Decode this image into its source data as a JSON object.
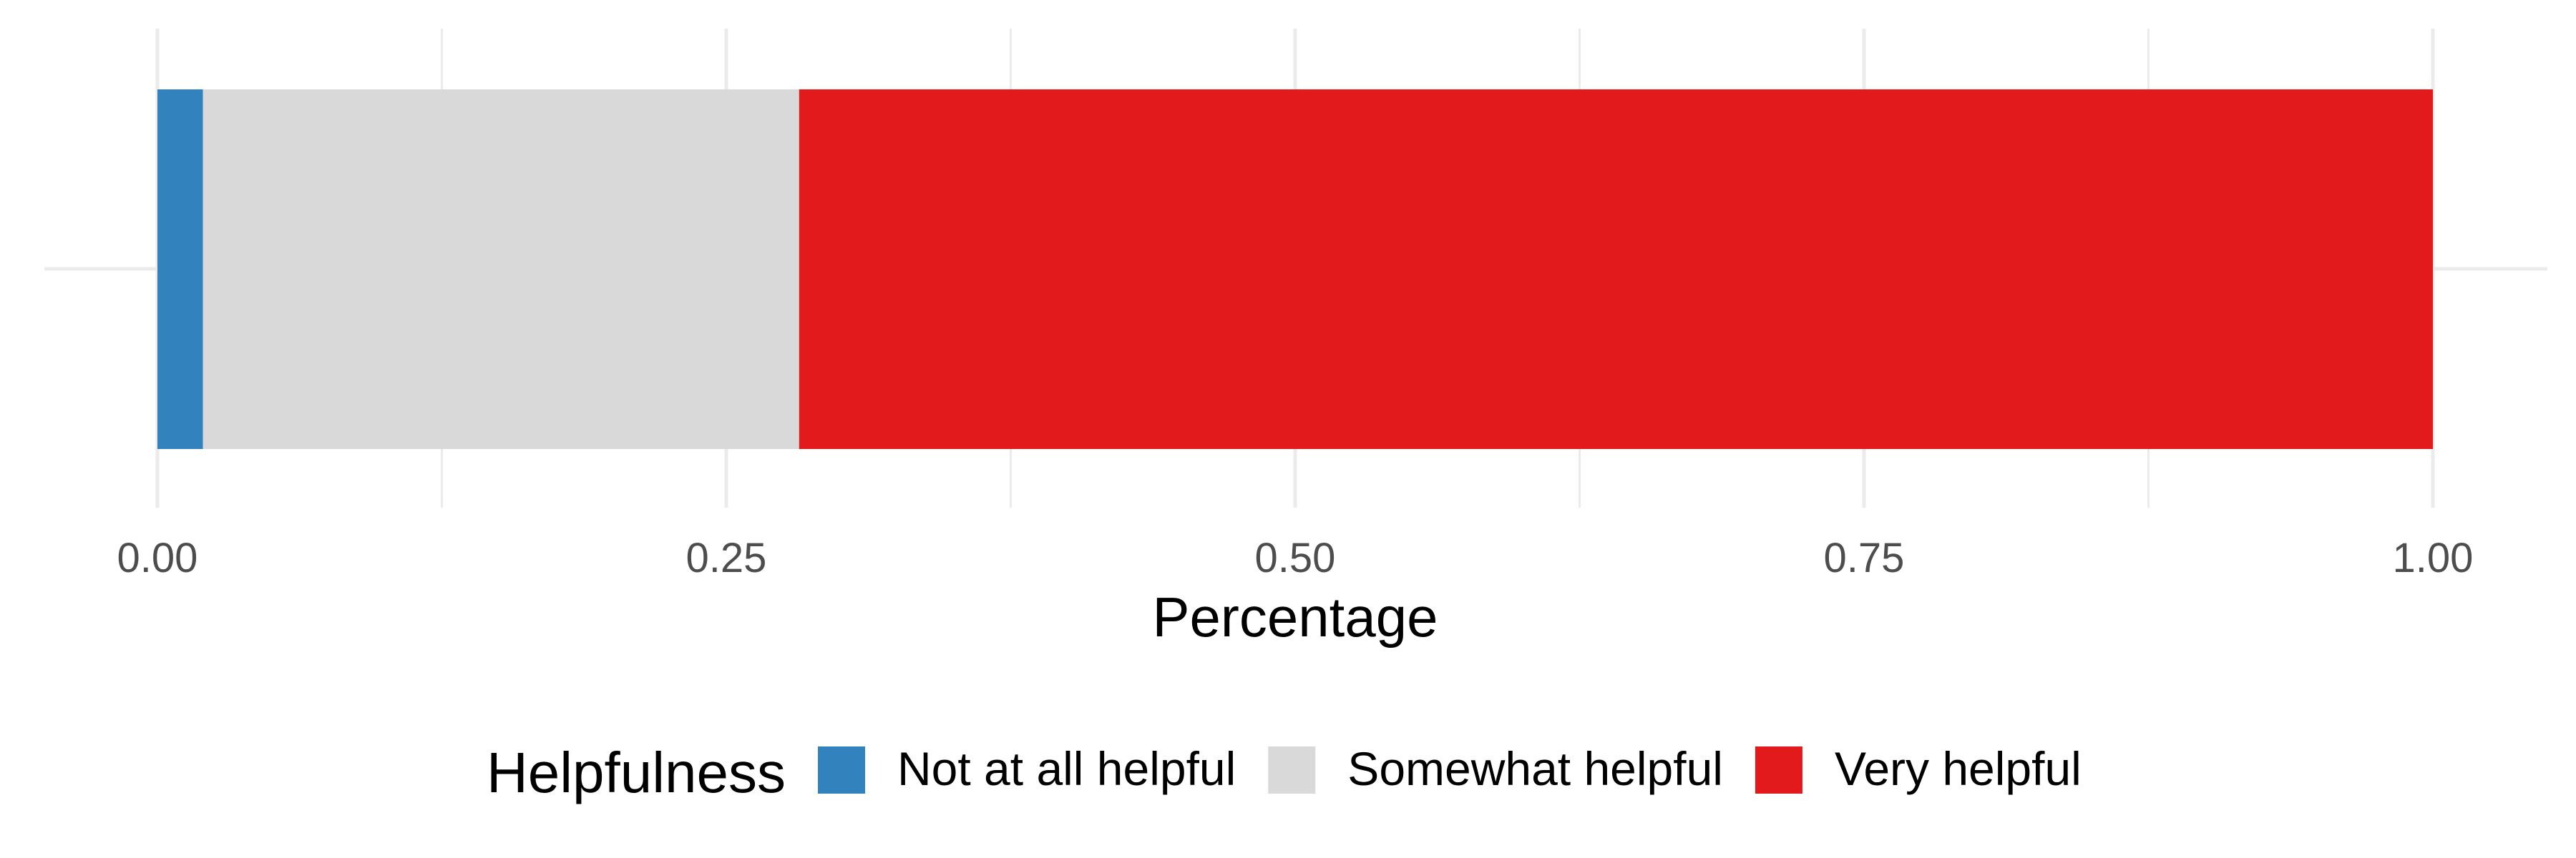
{
  "chart_data": {
    "type": "bar",
    "orientation": "horizontal",
    "stacked": true,
    "categories": [
      ""
    ],
    "series": [
      {
        "name": "Not at all helpful",
        "values": [
          0.02
        ],
        "color": "#3182bd"
      },
      {
        "name": "Somewhat helpful",
        "values": [
          0.262
        ],
        "color": "#d9d9d9"
      },
      {
        "name": "Very helpful",
        "values": [
          0.718
        ],
        "color": "#e31a1c"
      }
    ],
    "xlabel": "Percentage",
    "ylabel": "",
    "xlim": [
      0,
      1
    ],
    "xticks": [
      "0.00",
      "0.25",
      "0.50",
      "0.75",
      "1.00"
    ],
    "grid": true,
    "legend": {
      "title": "Helpfulness",
      "position": "bottom"
    }
  }
}
